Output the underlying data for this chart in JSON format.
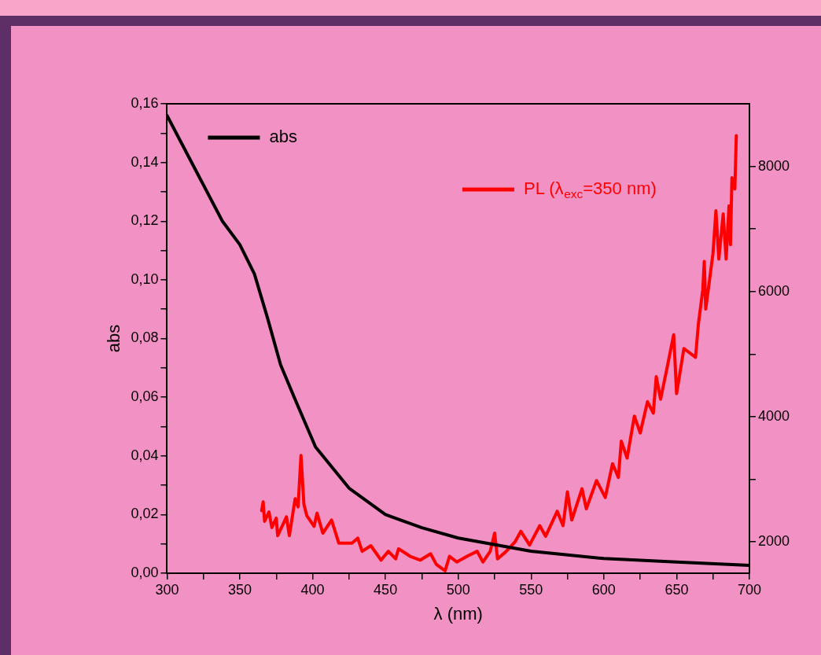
{
  "chart_data": {
    "type": "line",
    "xlabel": "λ (nm)",
    "ylabel": "abs",
    "xlim": [
      300,
      700
    ],
    "xticks": [
      300,
      {
        "value": 325,
        "label": null
      },
      350,
      {
        "value": 375,
        "label": null
      },
      400,
      {
        "value": 425,
        "label": null
      },
      450,
      {
        "value": 475,
        "label": null
      },
      500,
      {
        "value": 525,
        "label": null
      },
      550,
      {
        "value": 575,
        "label": null
      },
      600,
      {
        "value": 625,
        "label": null
      },
      650,
      {
        "value": 675,
        "label": null
      },
      700
    ],
    "ylim": [
      0,
      0.16
    ],
    "yticks": [
      {
        "value": 0,
        "label": "0,00"
      },
      {
        "value": 0.01,
        "label": null
      },
      {
        "value": 0.02,
        "label": "0,02"
      },
      {
        "value": 0.03,
        "label": null
      },
      {
        "value": 0.04,
        "label": "0,04"
      },
      {
        "value": 0.05,
        "label": null
      },
      {
        "value": 0.06,
        "label": "0,06"
      },
      {
        "value": 0.07,
        "label": null
      },
      {
        "value": 0.08,
        "label": "0,08"
      },
      {
        "value": 0.09,
        "label": null
      },
      {
        "value": 0.1,
        "label": "0,10"
      },
      {
        "value": 0.11,
        "label": null
      },
      {
        "value": 0.12,
        "label": "0,12"
      },
      {
        "value": 0.13,
        "label": null
      },
      {
        "value": 0.14,
        "label": "0,14"
      },
      {
        "value": 0.15,
        "label": null
      },
      {
        "value": 0.16,
        "label": "0,16"
      }
    ],
    "y2lim": [
      1500,
      9000
    ],
    "y2ticks": [
      2000,
      {
        "value": 3000,
        "label": null
      },
      4000,
      {
        "value": 5000,
        "label": null
      },
      6000,
      {
        "value": 7000,
        "label": null
      },
      8000
    ],
    "legend": "top",
    "grid": false,
    "marker": "none",
    "line_style": "solid",
    "series": [
      {
        "name": "abs",
        "color": "#000000",
        "x": [
          300,
          338,
          350,
          360,
          369,
          378,
          389,
          402,
          425,
          450,
          475,
          500,
          550,
          600,
          650,
          700
        ],
        "values": [
          0.156,
          0.12,
          0.112,
          0.102,
          0.087,
          0.071,
          0.058,
          0.043,
          0.029,
          0.02,
          0.0155,
          0.012,
          0.0075,
          0.005,
          0.0038,
          0.0027
        ]
      },
      {
        "name": "PL (λ$_{exc}$=350 nm)",
        "color": "#ff0000",
        "axis": "y2",
        "x": [
          365,
          366,
          367,
          370,
          372,
          375,
          376,
          382,
          384,
          388,
          390,
          392,
          394,
          396,
          401,
          403,
          407,
          413,
          418,
          427,
          431,
          434,
          440,
          447,
          452,
          457,
          459,
          467,
          474,
          481,
          485,
          491,
          494,
          499,
          506,
          513,
          517,
          522,
          525,
          527,
          533,
          539,
          543,
          549,
          556,
          560,
          568,
          572,
          575,
          578,
          585,
          588,
          595,
          601,
          606,
          610,
          612,
          616,
          621,
          625,
          630,
          634,
          636,
          639,
          643,
          648,
          650,
          655,
          663,
          665,
          668,
          669,
          670,
          675,
          677,
          679,
          682,
          684,
          686,
          687,
          688,
          690,
          691
        ],
        "values": [
          2500,
          2640,
          2330,
          2480,
          2230,
          2380,
          2100,
          2400,
          2100,
          2690,
          2560,
          3380,
          2600,
          2420,
          2250,
          2460,
          2140,
          2350,
          1980,
          1980,
          2060,
          1850,
          1940,
          1710,
          1850,
          1730,
          1890,
          1770,
          1710,
          1810,
          1640,
          1540,
          1770,
          1680,
          1770,
          1850,
          1680,
          1850,
          2140,
          1730,
          1850,
          2000,
          2170,
          1950,
          2260,
          2090,
          2490,
          2260,
          2800,
          2350,
          2850,
          2530,
          2980,
          2710,
          3250,
          3030,
          3610,
          3340,
          4010,
          3740,
          4240,
          4060,
          4640,
          4280,
          4730,
          5310,
          4370,
          5090,
          4950,
          5490,
          6030,
          6480,
          5720,
          6610,
          7290,
          6520,
          7240,
          6520,
          7370,
          6750,
          7820,
          7640,
          8490
        ]
      }
    ]
  }
}
